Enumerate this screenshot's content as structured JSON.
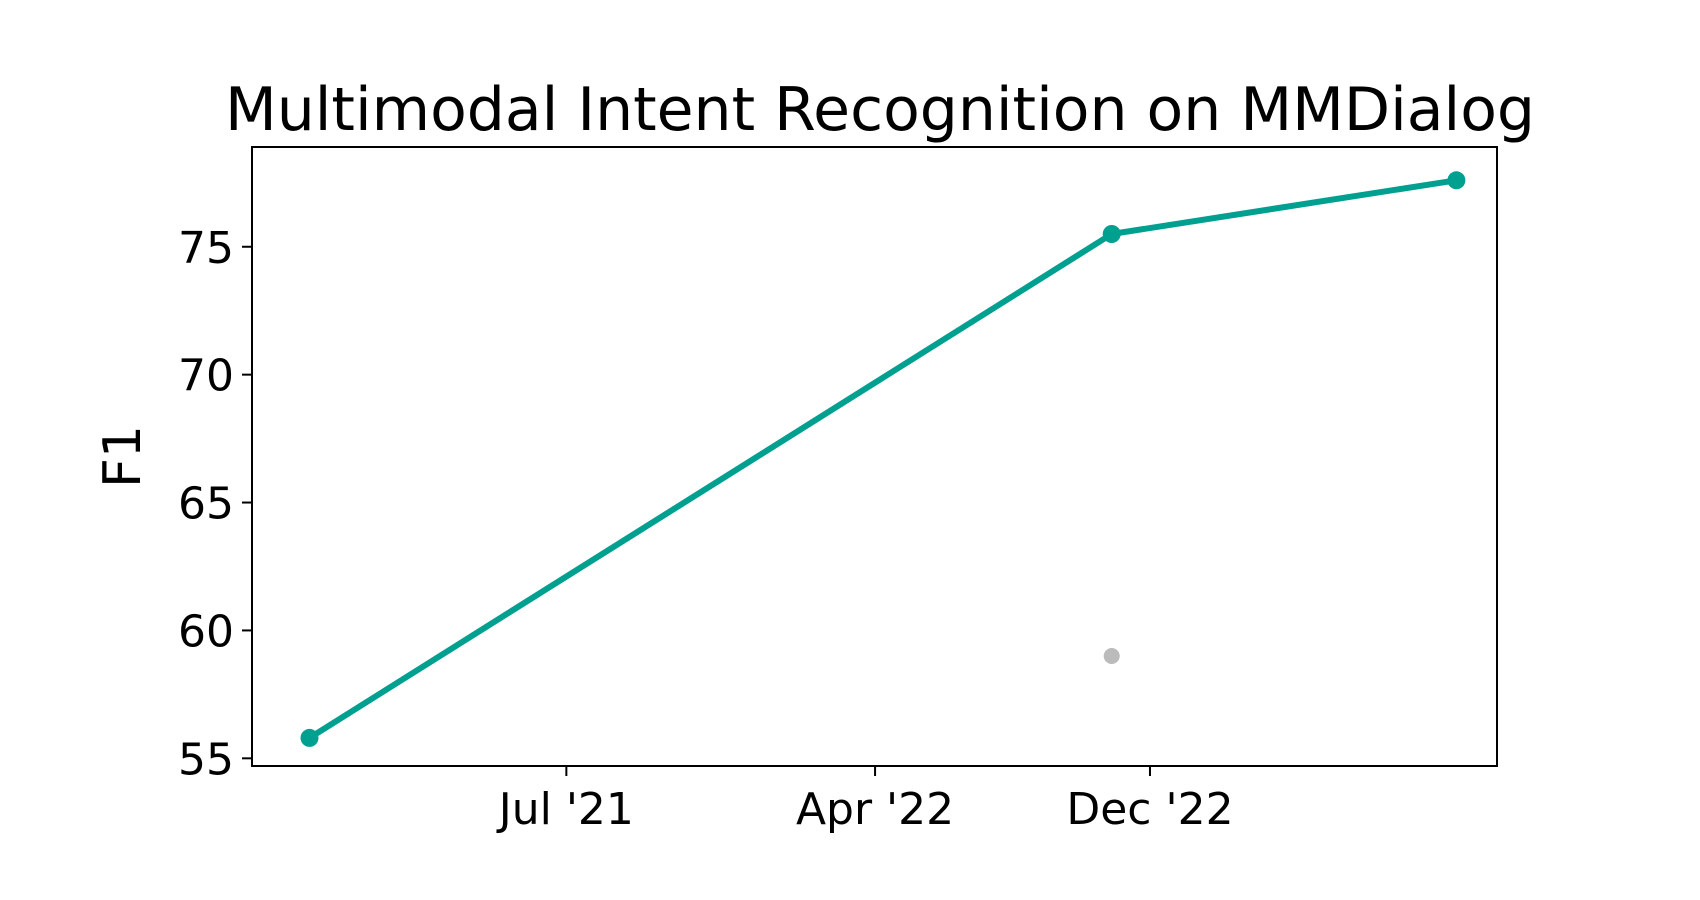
{
  "chart_data": {
    "type": "line",
    "title": "Multimodal Intent Recognition on MMDialog",
    "xlabel": "",
    "ylabel": "F1",
    "ylim": [
      54.7,
      78.9
    ],
    "xlim": [
      "2020-09-25",
      "2023-10-05"
    ],
    "x_ticks": [
      {
        "date": "2021-07-01",
        "label": "Jul '21"
      },
      {
        "date": "2022-04-01",
        "label": "Apr '22"
      },
      {
        "date": "2022-12-01",
        "label": "Dec '22"
      }
    ],
    "y_ticks": [
      55,
      60,
      65,
      70,
      75
    ],
    "grid": false,
    "series": [
      {
        "color": "#00a091",
        "points": [
          {
            "x": "2020-11-15",
            "y": 55.8
          },
          {
            "x": "2022-10-28",
            "y": 75.5
          },
          {
            "x": "2023-08-30",
            "y": 77.6
          }
        ]
      },
      {
        "color": "#bbbbbb",
        "line": false,
        "points": [
          {
            "x": "2022-10-28",
            "y": 59.0
          }
        ]
      }
    ]
  }
}
